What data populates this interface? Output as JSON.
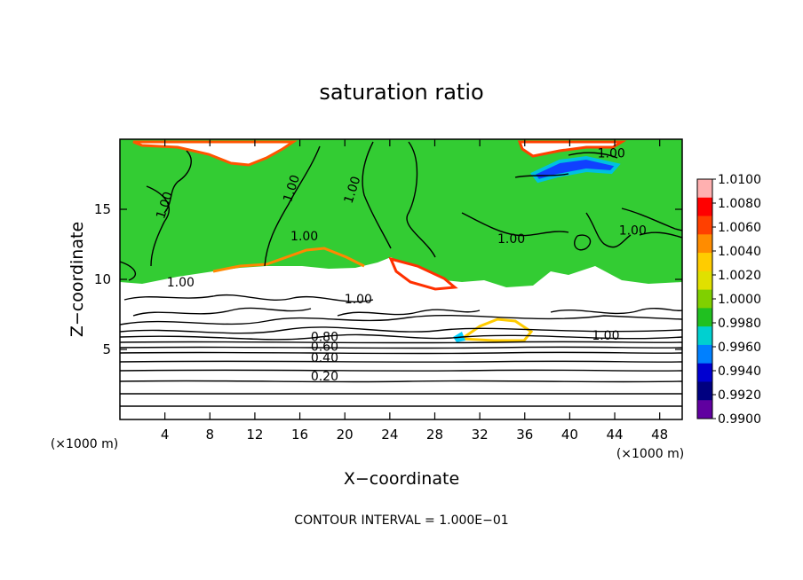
{
  "chart_data": {
    "type": "heatmap",
    "title": "saturation ratio",
    "xlabel": "X−coordinate",
    "ylabel": "Z−coordinate",
    "x_unit_left": "(×1000 m)",
    "x_unit_right": "(×1000 m)",
    "xlim": [
      0,
      50
    ],
    "ylim": [
      0,
      20
    ],
    "xticks": [
      4,
      8,
      12,
      16,
      20,
      24,
      28,
      32,
      36,
      40,
      44,
      48
    ],
    "yticks": [
      5,
      10,
      15
    ],
    "footnote": "CONTOUR INTERVAL = 1.000E−01",
    "colorbar": {
      "labels": [
        "1.0100",
        "1.0080",
        "1.0060",
        "1.0040",
        "1.0020",
        "1.0000",
        "0.9980",
        "0.9960",
        "0.9940",
        "0.9920",
        "0.9900"
      ],
      "colors": [
        "#ffb0b0",
        "#ff0000",
        "#ff4000",
        "#ff8c00",
        "#ffcc00",
        "#e0e000",
        "#80d000",
        "#20c020",
        "#00d0d0",
        "#0080ff",
        "#0000d0",
        "#000080",
        "#6000a0"
      ]
    },
    "field_color": "#33cc33",
    "contours": [
      {
        "label": "0.20",
        "z": 2.8
      },
      {
        "label": "0.40",
        "z": 4.1
      },
      {
        "label": "0.60",
        "z": 4.9
      },
      {
        "label": "0.80",
        "z": 5.6
      },
      {
        "label": "1.00",
        "z": 15.2
      },
      {
        "label": "1.00",
        "z": 16.4
      },
      {
        "label": "1.00",
        "z": 16.3
      },
      {
        "label": "1.00",
        "z": 12.6
      },
      {
        "label": "1.00",
        "z": 12.8
      },
      {
        "label": "1.00",
        "z": 13.2
      },
      {
        "label": "1.00",
        "z": 18.7
      },
      {
        "label": "1.00",
        "z": 9.5
      },
      {
        "label": "1.00",
        "z": 8.3
      },
      {
        "label": "1.00",
        "z": 5.7
      }
    ]
  }
}
